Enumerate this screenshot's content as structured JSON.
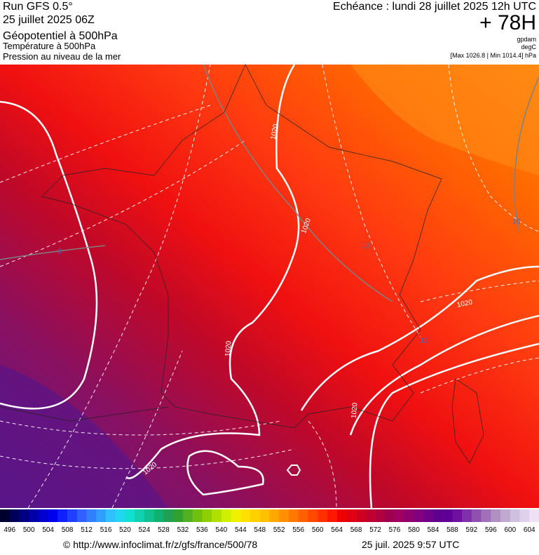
{
  "header": {
    "run": "Run GFS 0.5°",
    "run_date": "25 juillet 2025 06Z",
    "field1": "Géopotentiel à 500hPa",
    "field2": "Température à 500hPa",
    "field3": "Pression au niveau de la mer",
    "valid_time": "Echéance : lundi 28 juillet 2025 12h UTC",
    "lead": "+ 78H",
    "unit1": "gpdam",
    "unit2": "degC",
    "pressure_range": "[Max 1026.8 | Min 1014.4] hPa"
  },
  "map": {
    "contour_labels": [
      "1020",
      "1020",
      "1020",
      "1020",
      "1020",
      "1020",
      "8",
      "12",
      "16",
      "12"
    ]
  },
  "colorbar": {
    "labels": [
      "496",
      "500",
      "504",
      "508",
      "512",
      "516",
      "520",
      "524",
      "528",
      "532",
      "536",
      "540",
      "544",
      "548",
      "552",
      "556",
      "560",
      "564",
      "568",
      "572",
      "576",
      "580",
      "584",
      "588",
      "592",
      "596",
      "600",
      "604"
    ],
    "colors": [
      "#000030",
      "#00005a",
      "#000080",
      "#0000a8",
      "#0000d0",
      "#0000f0",
      "#1020ff",
      "#2040ff",
      "#3060ff",
      "#3080ff",
      "#30a0ff",
      "#30c0ff",
      "#20d8f0",
      "#10e0d0",
      "#10d0b0",
      "#10c090",
      "#10b070",
      "#20a050",
      "#30a030",
      "#50b020",
      "#70c010",
      "#90d000",
      "#b0e000",
      "#d0f000",
      "#f0f000",
      "#ffe000",
      "#ffd000",
      "#ffc000",
      "#ffa800",
      "#ff9000",
      "#ff7800",
      "#ff6000",
      "#ff4800",
      "#ff3000",
      "#ff1800",
      "#f00000",
      "#e00010",
      "#d00020",
      "#c00030",
      "#b00040",
      "#a00050",
      "#a00060",
      "#900070",
      "#800080",
      "#70008a",
      "#600090",
      "#600098",
      "#7010a0",
      "#8030a8",
      "#9050b0",
      "#a070b8",
      "#b090c0",
      "#c0a8d0",
      "#d0c0e0",
      "#e0d0ec",
      "#f0e0f4"
    ]
  },
  "footer": {
    "source": "© http://www.infoclimat.fr/z/gfs/france/500/78",
    "generated": "25 juil. 2025  9:57 UTC"
  }
}
